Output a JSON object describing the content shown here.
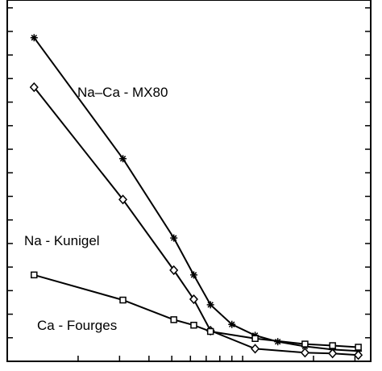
{
  "chart_data": {
    "type": "line",
    "title": "",
    "xlabel": "",
    "ylabel": "",
    "grid": false,
    "legend": "inline labels",
    "x_scale": "log",
    "series": [
      {
        "name": "Na–Ca - MX80",
        "marker": "star",
        "x": [
          1.3,
          3.1,
          5.1,
          6.2,
          7.3,
          9.0,
          11.3,
          14.1,
          18.4,
          24.1,
          31.0
        ],
        "y": [
          4.12,
          2.58,
          1.57,
          1.1,
          0.72,
          0.47,
          0.33,
          0.25,
          0.19,
          0.15,
          0.13
        ]
      },
      {
        "name": "Na - Kunigel",
        "marker": "diamond",
        "x": [
          1.3,
          3.1,
          5.1,
          6.2,
          7.3,
          11.3,
          18.4,
          24.1,
          31.0
        ],
        "y": [
          3.49,
          2.06,
          1.16,
          0.79,
          0.39,
          0.16,
          0.11,
          0.1,
          0.08
        ]
      },
      {
        "name": "Ca - Fourges",
        "marker": "square",
        "x": [
          1.3,
          3.1,
          5.1,
          6.2,
          7.3,
          11.3,
          18.4,
          24.1,
          31.0
        ],
        "y": [
          1.1,
          0.78,
          0.53,
          0.46,
          0.38,
          0.29,
          0.22,
          0.2,
          0.18
        ]
      }
    ],
    "labels": [
      "Na–Ca - MX80",
      "Na - Kunigel",
      "Ca - Fourges"
    ],
    "xlim": [
      1,
      35
    ],
    "ylim": [
      0,
      4.6
    ],
    "y_ticks": [
      0,
      0.3,
      0.6,
      0.9,
      1.2,
      1.5,
      1.8,
      2.1,
      2.4,
      2.7,
      3.0,
      3.3,
      3.6,
      3.9,
      4.2,
      4.5
    ],
    "x_ticks": [
      1,
      2,
      3,
      4,
      5,
      6,
      7,
      8,
      9,
      10,
      20,
      30
    ]
  }
}
